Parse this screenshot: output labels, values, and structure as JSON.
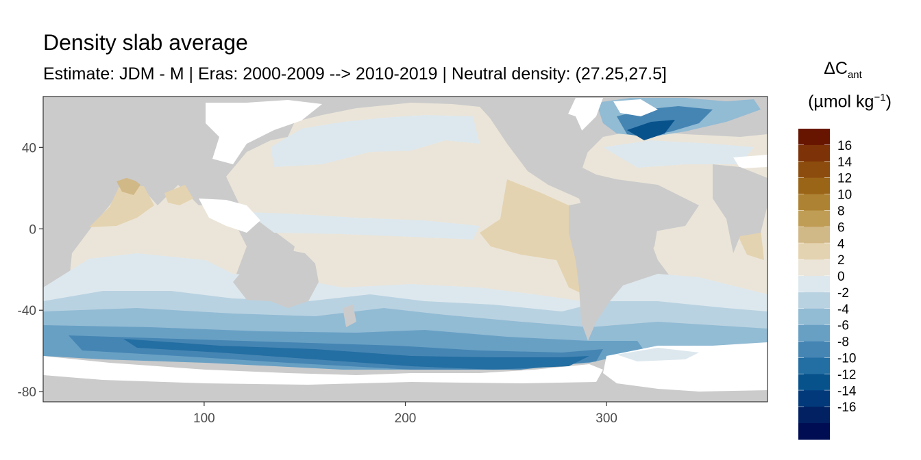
{
  "title": "Density slab average",
  "subtitle": "Estimate: JDM - M | Eras: 2000-2009 --> 2010-2019 | Neutral density: (27.25,27.5]",
  "legend": {
    "symbol": "ΔC",
    "symbol_sub": "ant",
    "unit_open": "(µmol kg",
    "unit_sup": "−1",
    "unit_close": ")",
    "bins": [
      {
        "label": "16",
        "color": "#671500"
      },
      {
        "label": "14",
        "color": "#7d3208"
      },
      {
        "label": "12",
        "color": "#8c4c0e"
      },
      {
        "label": "10",
        "color": "#9b6517"
      },
      {
        "label": "8",
        "color": "#ad8233"
      },
      {
        "label": "6",
        "color": "#bf9d55"
      },
      {
        "label": "4",
        "color": "#d1b887"
      },
      {
        "label": "2",
        "color": "#e4d3b0"
      },
      {
        "label": "0",
        "color": "#ebe5d9"
      },
      {
        "label": "-2",
        "color": "#dde8ee"
      },
      {
        "label": "-4",
        "color": "#b9d2e1"
      },
      {
        "label": "-6",
        "color": "#92bbd4"
      },
      {
        "label": "-8",
        "color": "#68a0c4"
      },
      {
        "label": "-10",
        "color": "#4585b3"
      },
      {
        "label": "-12",
        "color": "#236ea2"
      },
      {
        "label": "-14",
        "color": "#08528c"
      },
      {
        "label": "-16",
        "color": "#02397a"
      },
      {
        "label": "",
        "color": "#022163"
      },
      {
        "label": "",
        "color": "#000d52"
      }
    ]
  },
  "axes": {
    "x_ticks": [
      100,
      200,
      300
    ],
    "y_ticks": [
      40,
      0,
      -40,
      -80
    ],
    "xlim": [
      20,
      380
    ],
    "ylim": [
      -85,
      65
    ]
  },
  "colors": {
    "land": "#cbcbcb",
    "no_data": "#ffffff",
    "panel_border": "#333333",
    "tick_text": "#4d4d4d"
  }
}
